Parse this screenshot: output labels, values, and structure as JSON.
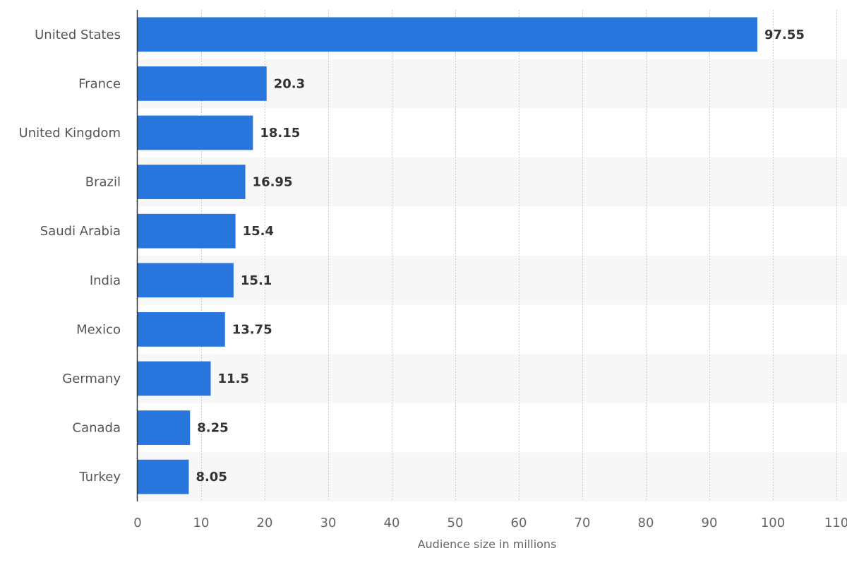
{
  "chart_data": {
    "type": "bar",
    "orientation": "horizontal",
    "categories": [
      "United States",
      "France",
      "United Kingdom",
      "Brazil",
      "Saudi Arabia",
      "India",
      "Mexico",
      "Germany",
      "Canada",
      "Turkey"
    ],
    "values": [
      97.55,
      20.3,
      18.15,
      16.95,
      15.4,
      15.1,
      13.75,
      11.5,
      8.25,
      8.05
    ],
    "value_labels": [
      "97.55",
      "20.3",
      "18.15",
      "16.95",
      "15.4",
      "15.1",
      "13.75",
      "11.5",
      "8.25",
      "8.05"
    ],
    "xlim": [
      0,
      110
    ],
    "xticks": [
      0,
      10,
      20,
      30,
      40,
      50,
      60,
      70,
      80,
      90,
      100,
      110
    ],
    "xlabel": "Audience size in millions",
    "ylabel": "",
    "title": "",
    "grid": true,
    "legend": false,
    "bar_color": "#2876dd",
    "band_color": "#f7f7f7",
    "grid_color": "#cccccc"
  }
}
